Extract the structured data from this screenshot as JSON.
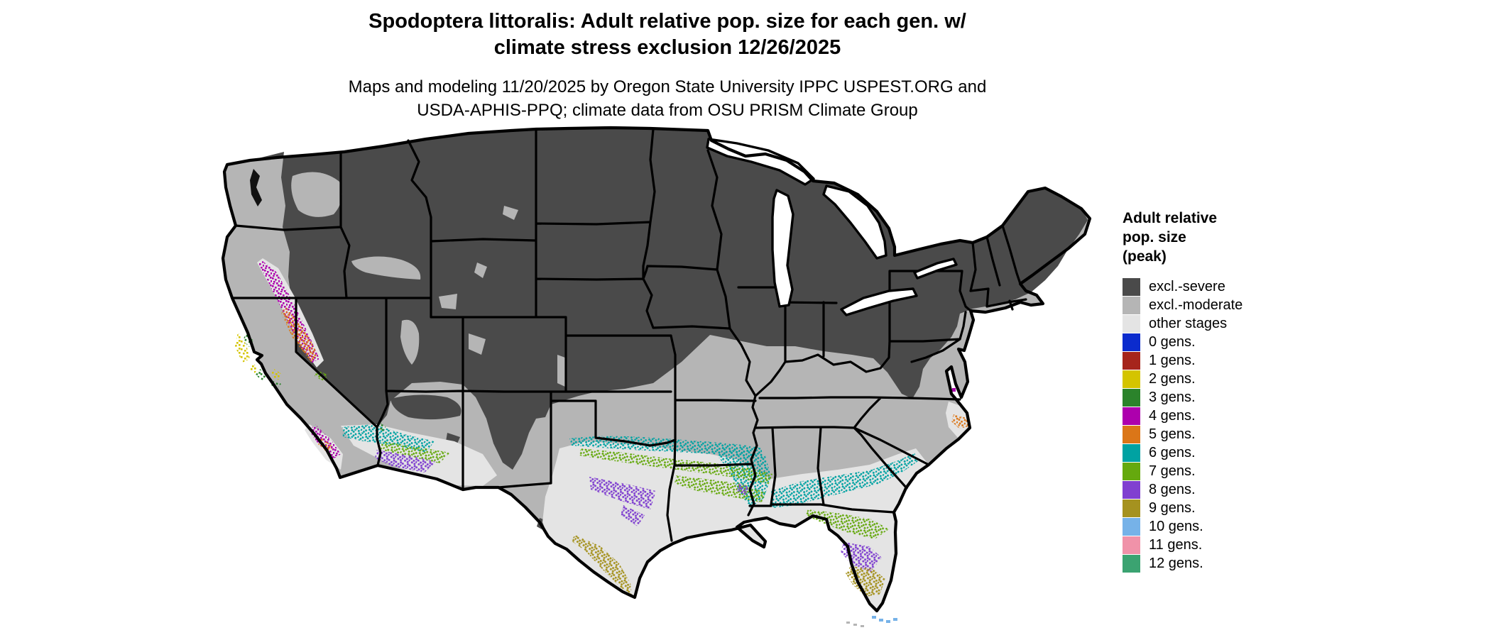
{
  "title": {
    "line1": "Spodoptera littoralis: Adult relative pop. size for each gen. w/",
    "line2": "climate stress exclusion 12/26/2025"
  },
  "subtitle": {
    "line1": "Maps and modeling 11/20/2025 by Oregon State University IPPC USPEST.ORG and",
    "line2": "USDA-APHIS-PPQ; climate data from OSU PRISM Climate Group"
  },
  "legend": {
    "title_lines": [
      "Adult relative",
      "pop. size",
      "(peak)"
    ],
    "items": [
      {
        "label": "excl.-severe",
        "color": "#4a4a4a"
      },
      {
        "label": "excl.-moderate",
        "color": "#b5b5b5"
      },
      {
        "label": "other stages",
        "color": "#e4e4e4"
      },
      {
        "label": "0 gens.",
        "color": "#0b2bcd"
      },
      {
        "label": "1 gens.",
        "color": "#a6251c"
      },
      {
        "label": "2 gens.",
        "color": "#d4c400"
      },
      {
        "label": "3 gens.",
        "color": "#2b832b"
      },
      {
        "label": "4 gens.",
        "color": "#ad00ad"
      },
      {
        "label": "5 gens.",
        "color": "#db7618"
      },
      {
        "label": "6 gens.",
        "color": "#00a2a2"
      },
      {
        "label": "7 gens.",
        "color": "#65a90e"
      },
      {
        "label": "8 gens.",
        "color": "#8040d0"
      },
      {
        "label": "9 gens.",
        "color": "#a5921f"
      },
      {
        "label": "10 gens.",
        "color": "#76b2e8"
      },
      {
        "label": "11 gens.",
        "color": "#f092a9"
      },
      {
        "label": "12 gens.",
        "color": "#3ba371"
      }
    ]
  },
  "map": {
    "description": "Conterminous US map, state borders in black on white background",
    "background": "#ffffff",
    "border_color": "#000000",
    "water_color": "#ffffff",
    "puget_sound_color": "#111111",
    "visible_regions": [
      {
        "area": "Northern and interior US",
        "class": "excl.-severe"
      },
      {
        "area": "Pacific coast strip, southern plains, mid-South, Southeast",
        "class": "excl.-moderate"
      },
      {
        "area": "California Central Valley",
        "gens": "4 gens."
      },
      {
        "area": "Southern San Joaquin Valley",
        "gens": "5 gens."
      },
      {
        "area": "Central California coast",
        "gens": "2 gens. / 3 gens."
      },
      {
        "area": "Southwest deserts (SE California, Arizona)",
        "gens": "6-8 gens."
      },
      {
        "area": "Central Texas belt and lower Mississippi valley",
        "gens": "6 gens."
      },
      {
        "area": "South-central Texas, Louisiana coast, north Florida",
        "gens": "7 gens."
      },
      {
        "area": "South Texas and central Florida",
        "gens": "8 gens."
      },
      {
        "area": "Deep south Texas and south Florida",
        "gens": "9 gens."
      },
      {
        "area": "Florida Keys",
        "gens": "10 gens."
      },
      {
        "area": "North Carolina Outer Banks",
        "gens": "5 gens."
      }
    ]
  }
}
